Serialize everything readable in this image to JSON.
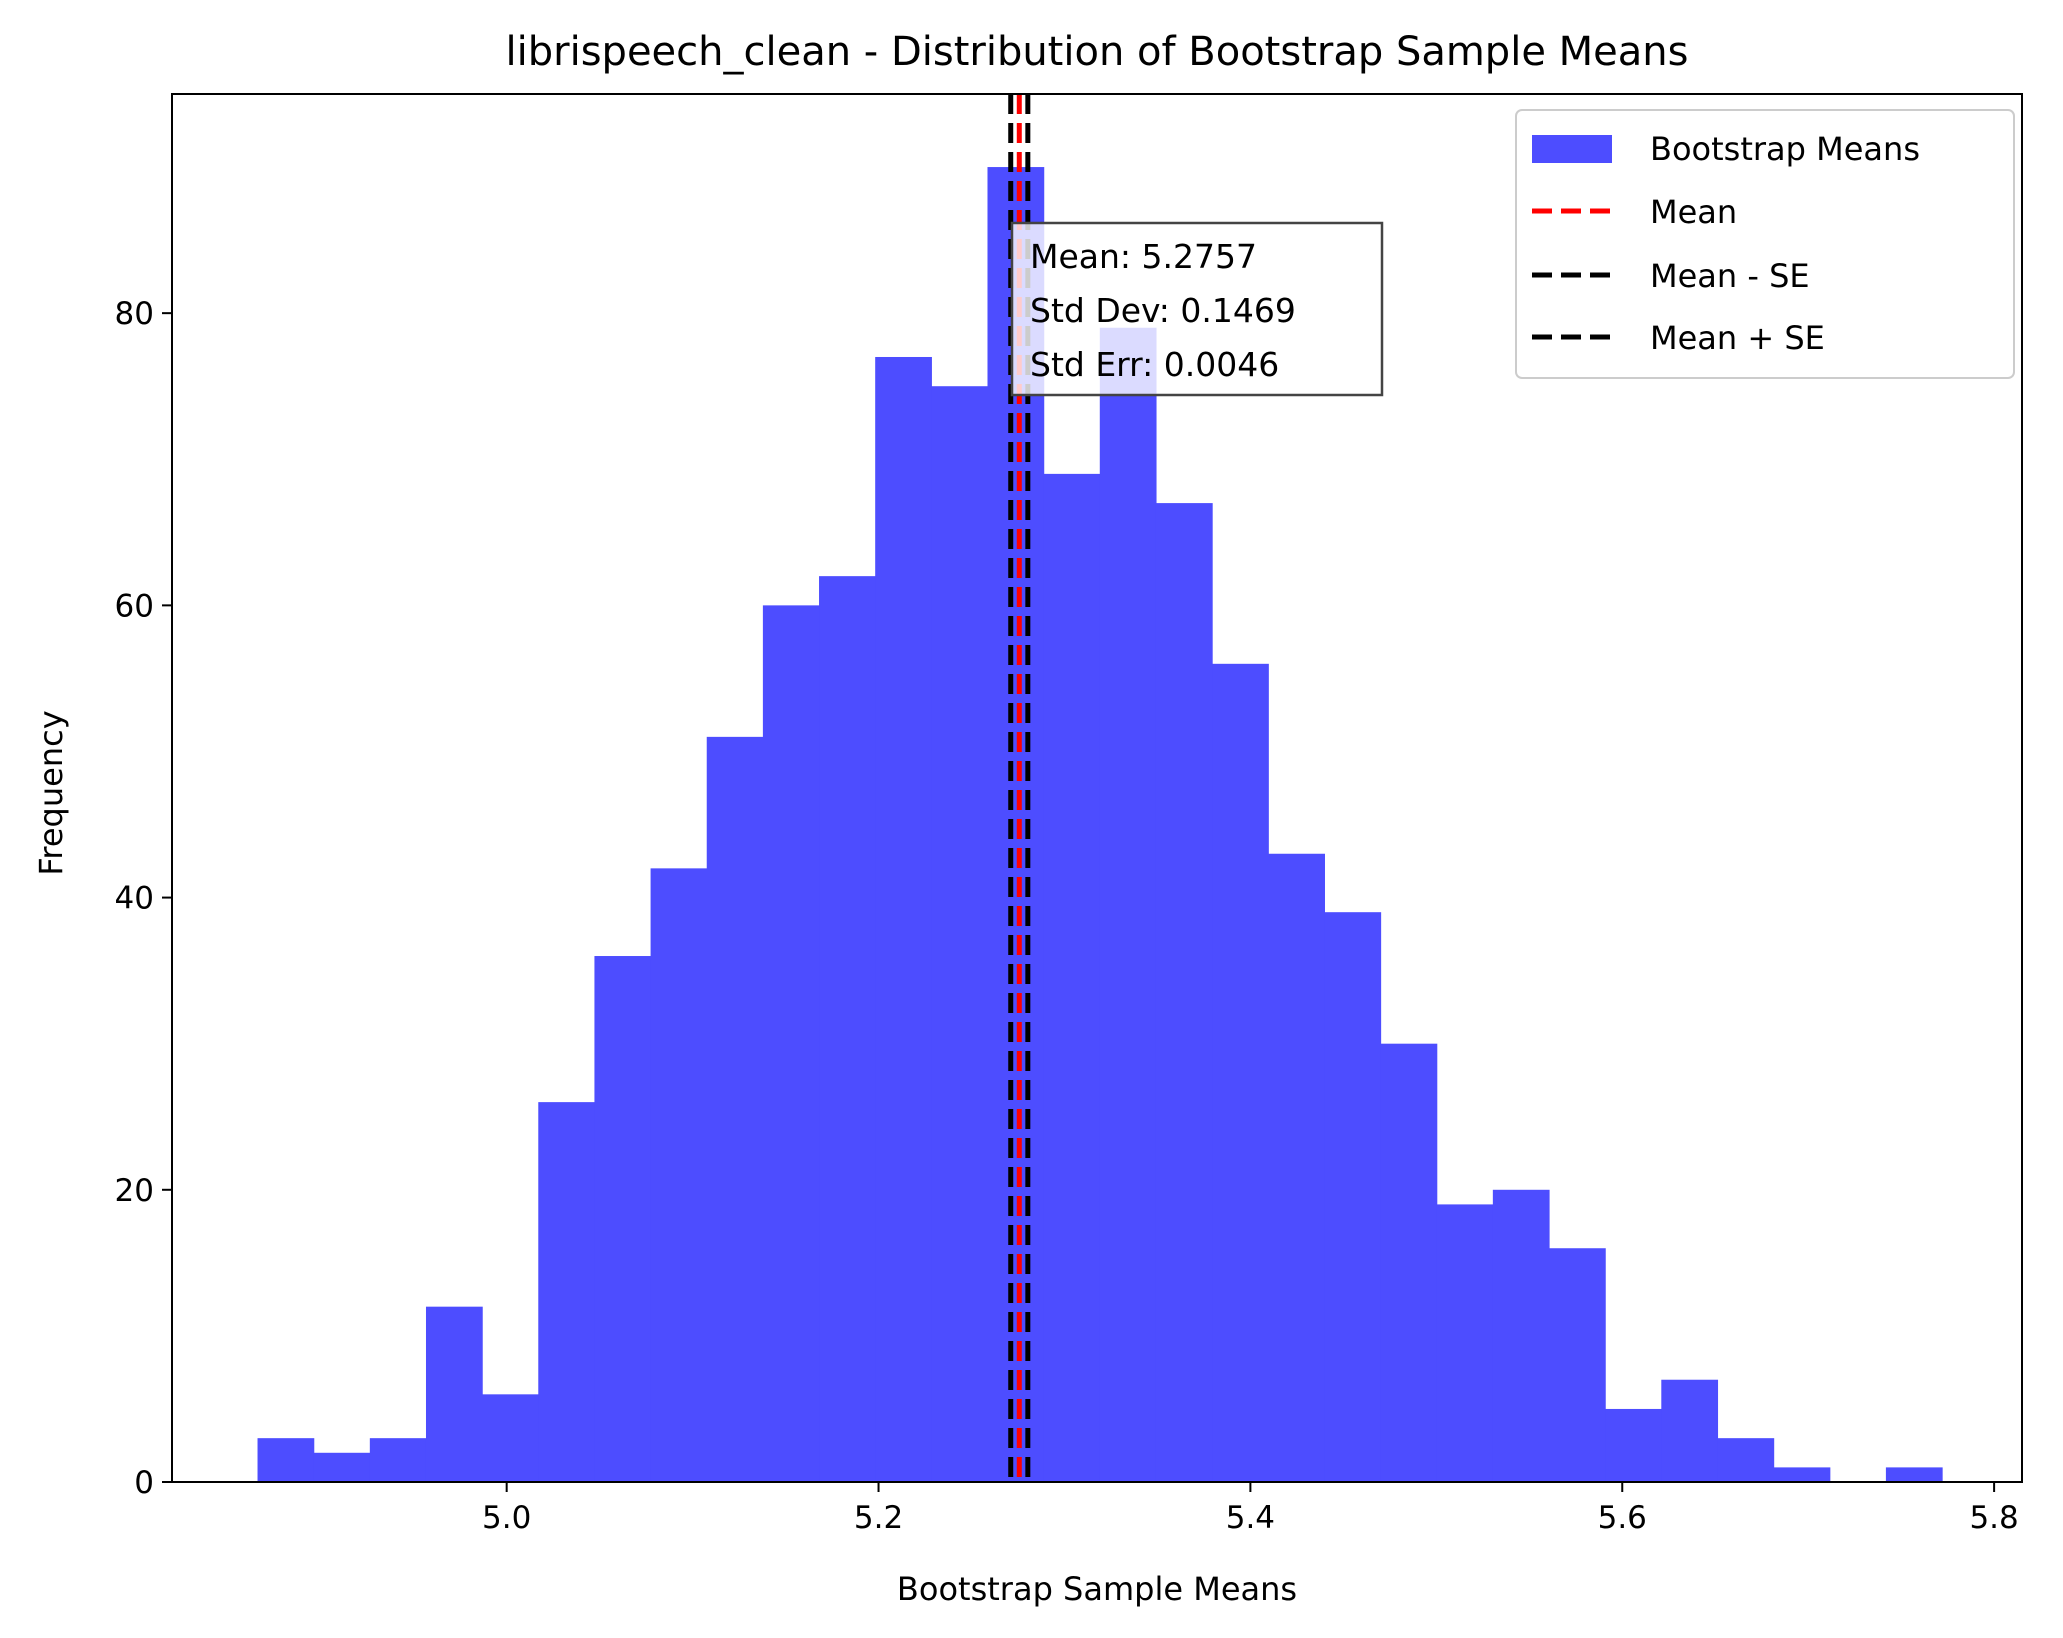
{
  "chart_data": {
    "type": "bar",
    "title": "librispeech_clean - Distribution of Bootstrap Sample Means",
    "xlabel": "Bootstrap Sample Means",
    "ylabel": "Frequency",
    "xlim": [
      4.82,
      5.815
    ],
    "ylim": [
      0,
      95
    ],
    "xticks": [
      5.0,
      5.2,
      5.4,
      5.6,
      5.8
    ],
    "xtick_labels": [
      "5.0",
      "5.2",
      "5.4",
      "5.6",
      "5.8"
    ],
    "yticks": [
      0,
      20,
      40,
      60,
      80
    ],
    "ytick_labels": [
      "0",
      "20",
      "40",
      "60",
      "80"
    ],
    "grid": false,
    "bins": {
      "start": 4.866,
      "width": 0.0302,
      "counts": [
        3,
        2,
        3,
        12,
        6,
        26,
        36,
        42,
        51,
        60,
        62,
        77,
        75,
        90,
        69,
        79,
        67,
        56,
        43,
        39,
        30,
        19,
        20,
        16,
        5,
        7,
        3,
        1,
        0,
        1
      ]
    },
    "series": [
      {
        "name": "Bootstrap Means",
        "color": "#4d4dff"
      }
    ],
    "lines": [
      {
        "name": "Mean",
        "x": 5.2757,
        "color": "#ff0000",
        "style": "dashed"
      },
      {
        "name": "Mean - SE",
        "x": 5.2711,
        "color": "#000000",
        "style": "dashed"
      },
      {
        "name": "Mean + SE",
        "x": 5.2803,
        "color": "#000000",
        "style": "dashed"
      }
    ],
    "legend": {
      "placement": "top-right",
      "entries": [
        "Bootstrap Means",
        "Mean",
        "Mean - SE",
        "Mean + SE"
      ]
    },
    "annotation": {
      "lines": [
        "Mean: 5.2757",
        "Std Dev: 0.1469",
        "Std Err: 0.0046"
      ]
    }
  }
}
